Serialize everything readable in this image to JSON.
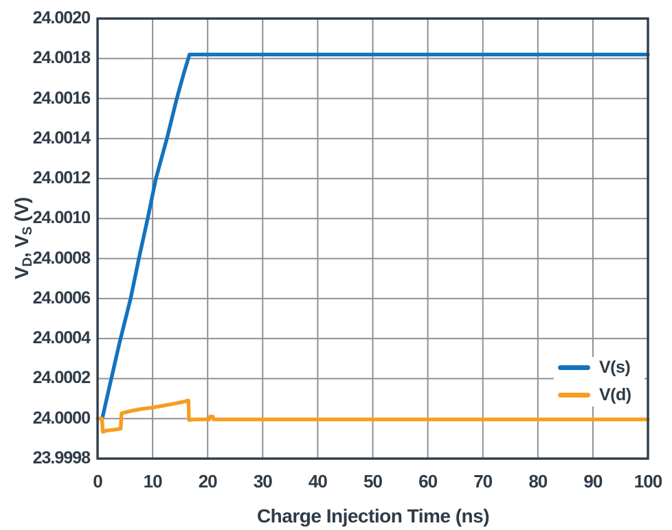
{
  "chart_data": {
    "type": "line",
    "xlabel": "Charge Injection Time (ns)",
    "ylabel": "VD, VS (V)",
    "ylabel_parts": {
      "p1": "V",
      "sub1": "D",
      "p2": ", V",
      "sub2": "S",
      "p3": " (V)"
    },
    "xlim": [
      0,
      100
    ],
    "ylim": [
      23.9998,
      24.002
    ],
    "xticks": [
      0,
      10,
      20,
      30,
      40,
      50,
      60,
      70,
      80,
      90,
      100
    ],
    "yticks": [
      "23.9998",
      "24.0000",
      "24.0002",
      "24.0004",
      "24.0006",
      "24.0008",
      "24.0010",
      "24.0012",
      "24.0014",
      "24.0016",
      "24.0018",
      "24.0020"
    ],
    "grid": "on",
    "legend_position": "inside-right",
    "colors": {
      "grid": "#8F9095",
      "frame": "#2F3B47",
      "text": "#2F3B47",
      "background": "#FFFFFF"
    },
    "series": [
      {
        "name": "V(s)",
        "color": "#1473BD",
        "points": [
          [
            0.85,
            24.0
          ],
          [
            2,
            24.00014
          ],
          [
            4,
            24.00038
          ],
          [
            6,
            24.0006
          ],
          [
            7.5,
            24.0008
          ],
          [
            9.1,
            24.001
          ],
          [
            10.6,
            24.0012
          ],
          [
            12.6,
            24.0014
          ],
          [
            14.4,
            24.0016
          ],
          [
            15.7,
            24.00173
          ],
          [
            16.7,
            24.00182
          ],
          [
            100,
            24.00182
          ]
        ]
      },
      {
        "name": "V(d)",
        "color": "#F79D22",
        "points": [
          [
            0,
            24.0
          ],
          [
            0.8,
            24.0
          ],
          [
            0.95,
            23.999934
          ],
          [
            1.6,
            23.99994
          ],
          [
            3,
            23.999944
          ],
          [
            4.2,
            23.99995
          ],
          [
            4.35,
            24.000026
          ],
          [
            4.8,
            24.00003
          ],
          [
            6,
            24.000038
          ],
          [
            8,
            24.000048
          ],
          [
            10,
            24.000055
          ],
          [
            12,
            24.000065
          ],
          [
            14,
            24.000075
          ],
          [
            15.9,
            24.000086
          ],
          [
            16.35,
            24.00009
          ],
          [
            16.5,
            24.00009
          ],
          [
            16.62,
            23.999993
          ],
          [
            17.5,
            23.999996
          ],
          [
            20.3,
            23.999996
          ],
          [
            20.45,
            24.00001
          ],
          [
            20.95,
            24.00001
          ],
          [
            21.1,
            23.999996
          ],
          [
            100,
            23.999996
          ]
        ]
      }
    ]
  }
}
